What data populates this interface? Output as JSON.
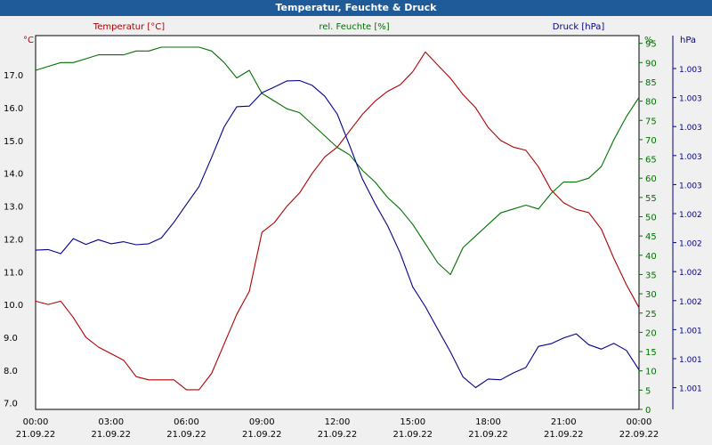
{
  "window": {
    "title": "Temperatur, Feuchte & Druck"
  },
  "chart_data": {
    "type": "line",
    "x_ticks": [
      {
        "time": "00:00",
        "date": "21.09.22",
        "h": 0
      },
      {
        "time": "03:00",
        "date": "21.09.22",
        "h": 3
      },
      {
        "time": "06:00",
        "date": "21.09.22",
        "h": 6
      },
      {
        "time": "09:00",
        "date": "21.09.22",
        "h": 9
      },
      {
        "time": "12:00",
        "date": "21.09.22",
        "h": 12
      },
      {
        "time": "15:00",
        "date": "21.09.22",
        "h": 15
      },
      {
        "time": "18:00",
        "date": "21.09.22",
        "h": 18
      },
      {
        "time": "21:00",
        "date": "21.09.22",
        "h": 21
      },
      {
        "time": "00:00",
        "date": "22.09.22",
        "h": 24
      }
    ],
    "axes": {
      "temperature": {
        "label": "Temperatur [°C]",
        "unit": "°C",
        "color": "#b00000",
        "ylim": [
          6.8,
          18.2
        ],
        "ticks": [
          "7.0",
          "8.0",
          "9.0",
          "10.0",
          "11.0",
          "12.0",
          "13.0",
          "14.0",
          "15.0",
          "16.0",
          "17.0"
        ]
      },
      "humidity": {
        "label": "rel. Feuchte [%]",
        "unit": "%",
        "color": "#007000",
        "ylim": [
          0,
          97
        ],
        "ticks": [
          "0",
          "5",
          "10",
          "15",
          "20",
          "25",
          "30",
          "35",
          "40",
          "45",
          "50",
          "55",
          "60",
          "65",
          "70",
          "75",
          "80",
          "85",
          "90",
          "95"
        ]
      },
      "pressure": {
        "label": "Druck [hPa]",
        "unit": "hPa",
        "color": "#00008b",
        "ylim": [
          0,
          1
        ],
        "ticks": [
          "1.001",
          "1.001",
          "1.001",
          "1.002",
          "1.002",
          "1.002",
          "1.002",
          "1.003",
          "1.003",
          "1.003",
          "1.003",
          "1.003"
        ]
      }
    },
    "grid": true,
    "series": [
      {
        "name": "Temperatur [°C]",
        "axis": "temperature",
        "color": "#b00000",
        "x": [
          0,
          0.5,
          1,
          1.5,
          2,
          2.5,
          3,
          3.5,
          4,
          4.5,
          5,
          5.5,
          6,
          6.5,
          7,
          7.5,
          8,
          8.5,
          9,
          9.5,
          10,
          10.5,
          11,
          11.5,
          12,
          12.5,
          13,
          13.5,
          14,
          14.5,
          15,
          15.5,
          16,
          16.5,
          17,
          17.5,
          18,
          18.5,
          19,
          19.5,
          20,
          20.5,
          21,
          21.5,
          22,
          22.5,
          23,
          23.5,
          24
        ],
        "values": [
          10.1,
          10.0,
          10.1,
          9.6,
          9.0,
          8.7,
          8.5,
          8.3,
          7.8,
          7.7,
          7.7,
          7.7,
          7.4,
          7.4,
          7.9,
          8.8,
          9.7,
          10.4,
          12.2,
          12.5,
          13.0,
          13.4,
          14.0,
          14.5,
          14.8,
          15.3,
          15.8,
          16.2,
          16.5,
          16.7,
          17.1,
          17.7,
          17.3,
          16.9,
          16.4,
          16.0,
          15.4,
          15.0,
          14.8,
          14.7,
          14.2,
          13.5,
          13.1,
          12.9,
          12.8,
          12.3,
          11.4,
          10.6,
          9.9
        ]
      },
      {
        "name": "rel. Feuchte [%]",
        "axis": "humidity",
        "color": "#007000",
        "x": [
          0,
          0.5,
          1,
          1.5,
          2,
          2.5,
          3,
          3.5,
          4,
          4.5,
          5,
          5.5,
          6,
          6.5,
          7,
          7.5,
          8,
          8.5,
          9,
          9.5,
          10,
          10.5,
          11,
          11.5,
          12,
          12.5,
          13,
          13.5,
          14,
          14.5,
          15,
          15.5,
          16,
          16.5,
          17,
          17.5,
          18,
          18.5,
          19,
          19.5,
          20,
          20.5,
          21,
          21.5,
          22,
          22.5,
          23,
          23.5,
          24
        ],
        "values": [
          88,
          89,
          90,
          90,
          91,
          92,
          92,
          92,
          93,
          93,
          94,
          94,
          94,
          94,
          93,
          90,
          86,
          88,
          82,
          80,
          78,
          77,
          74,
          71,
          68,
          66,
          62,
          59,
          55,
          52,
          48,
          43,
          38,
          35,
          42,
          45,
          48,
          51,
          52,
          53,
          52,
          56,
          59,
          59,
          60,
          63,
          70,
          76,
          81
        ]
      },
      {
        "name": "Druck [hPa]",
        "axis": "pressure",
        "color": "#00008b",
        "x": [
          0,
          0.5,
          1,
          1.5,
          2,
          2.5,
          3,
          3.5,
          4,
          4.5,
          5,
          5.5,
          6,
          6.5,
          7,
          7.5,
          8,
          8.5,
          9,
          9.5,
          10,
          10.5,
          11,
          11.5,
          12,
          12.5,
          13,
          13.5,
          14,
          14.5,
          15,
          15.5,
          16,
          16.5,
          17,
          17.5,
          18,
          18.5,
          19,
          19.5,
          20,
          20.5,
          21,
          21.5,
          22,
          22.5,
          23,
          23.5,
          24
        ],
        "values": [
          0.463,
          0.465,
          0.453,
          0.497,
          0.48,
          0.494,
          0.482,
          0.488,
          0.479,
          0.482,
          0.499,
          0.545,
          0.598,
          0.65,
          0.736,
          0.826,
          0.885,
          0.887,
          0.926,
          0.943,
          0.961,
          0.962,
          0.948,
          0.916,
          0.863,
          0.769,
          0.672,
          0.6,
          0.535,
          0.455,
          0.355,
          0.297,
          0.23,
          0.164,
          0.09,
          0.059,
          0.084,
          0.082,
          0.102,
          0.118,
          0.18,
          0.188,
          0.205,
          0.217,
          0.185,
          0.172,
          0.189,
          0.168,
          0.111
        ]
      }
    ]
  }
}
